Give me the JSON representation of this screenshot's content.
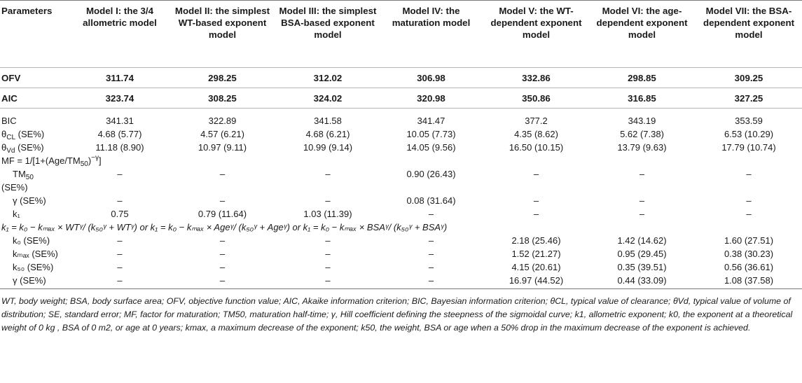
{
  "header": {
    "parameters": "Parameters",
    "models": [
      "Model I: the 3/4 allometric model",
      "Model II: the simplest WT-based exponent model",
      "Model III: the simplest BSA-based exponent model",
      "Model IV: the maturation model",
      "Model V: the WT-dependent exponent model",
      "Model VI: the age-dependent exponent model",
      "Model VII: the BSA-dependent exponent model"
    ]
  },
  "bold_rows": [
    {
      "label": "OFV",
      "values": [
        "311.74",
        "298.25",
        "312.02",
        "306.98",
        "332.86",
        "298.85",
        "309.25"
      ]
    },
    {
      "label": "AIC",
      "values": [
        "323.74",
        "308.25",
        "324.02",
        "320.98",
        "350.86",
        "316.85",
        "327.25"
      ]
    }
  ],
  "rows": {
    "bic": {
      "label": "BIC",
      "values": [
        "341.31",
        "322.89",
        "341.58",
        "341.47",
        "377.2",
        "343.19",
        "353.59"
      ]
    },
    "theta_cl": {
      "label_main": "θ",
      "label_sub": "CL",
      "label_suffix": " (SE%)",
      "values": [
        "4.68 (5.77)",
        "4.57 (6.21)",
        "4.68 (6.21)",
        "10.05 (7.73)",
        "4.35 (8.62)",
        "5.62 (7.38)",
        "6.53 (10.29)"
      ]
    },
    "theta_vd": {
      "label_main": "θ",
      "label_sub": "Vd",
      "label_suffix": " (SE%)",
      "values": [
        "11.18 (8.90)",
        "10.97 (9.11)",
        "10.99 (9.14)",
        "14.05 (9.56)",
        "16.50 (10.15)",
        "13.79 (9.63)",
        "17.79 (10.74)"
      ]
    },
    "mf_formula": {
      "a": "MF = 1/[1+(Age/TM",
      "sub": "50",
      "b": ")",
      "sup": "−γ",
      "c": "]"
    },
    "tm50": {
      "label_main": "TM",
      "label_sub": "50",
      "values": [
        "–",
        "–",
        "–",
        "0.90 (26.43)",
        "–",
        "–",
        "–"
      ]
    },
    "tm50_se": {
      "label": "(SE%)"
    },
    "gamma1": {
      "label": "γ (SE%)",
      "values": [
        "–",
        "–",
        "–",
        "0.08 (31.64)",
        "–",
        "–",
        "–"
      ]
    },
    "k1": {
      "label": "k₁",
      "values": [
        "0.75",
        "0.79 (11.64)",
        "1.03 (11.39)",
        "–",
        "–",
        "–",
        "–"
      ]
    },
    "k1_formula": "k₁ = k₀ − kₘₐₓ × WTᵞ/ (k₅₀ᵞ + WTᵞ) or k₁ = k₀ − kₘₐₓ × Ageᵞ/ (k₅₀ᵞ + Ageᵞ) or k₁  =  k₀ − kₘₐₓ × BSAᵞ/ (k₅₀ᵞ + BSAᵞ)",
    "k0": {
      "label": "k₀ (SE%)",
      "values": [
        "–",
        "–",
        "–",
        "–",
        "2.18 (25.46)",
        "1.42 (14.62)",
        "1.60 (27.51)"
      ]
    },
    "kmax": {
      "label": "kₘₐₓ (SE%)",
      "values": [
        "–",
        "–",
        "–",
        "–",
        "1.52 (21.27)",
        "0.95 (29.45)",
        "0.38 (30.23)"
      ]
    },
    "k50": {
      "label": "k₅₀ (SE%)",
      "values": [
        "–",
        "–",
        "–",
        "–",
        "4.15 (20.61)",
        "0.35 (39.51)",
        "0.56 (36.61)"
      ]
    },
    "gamma2": {
      "label": "γ (SE%)",
      "values": [
        "–",
        "–",
        "–",
        "–",
        "16.97 (44.52)",
        "0.44 (33.09)",
        "1.08 (37.58)"
      ]
    }
  },
  "footnote": "WT, body weight; BSA, body surface area; OFV, objective function value; AIC, Akaike information criterion; BIC, Bayesian information criterion; θCL, typical value of clearance; θVd, typical value of volume of distribution; SE, standard error; MF, factor for maturation; TM50, maturation half-time; γ, Hill coefficient defining the steepness of the sigmoidal curve; k1, allometric exponent; k0, the exponent at a theoretical weight of 0 kg , BSA of 0 m2, or age at 0 years; kmax, a maximum decrease of the exponent; k50, the weight, BSA or age when a 50% drop in the maximum decrease of the exponent is achieved."
}
